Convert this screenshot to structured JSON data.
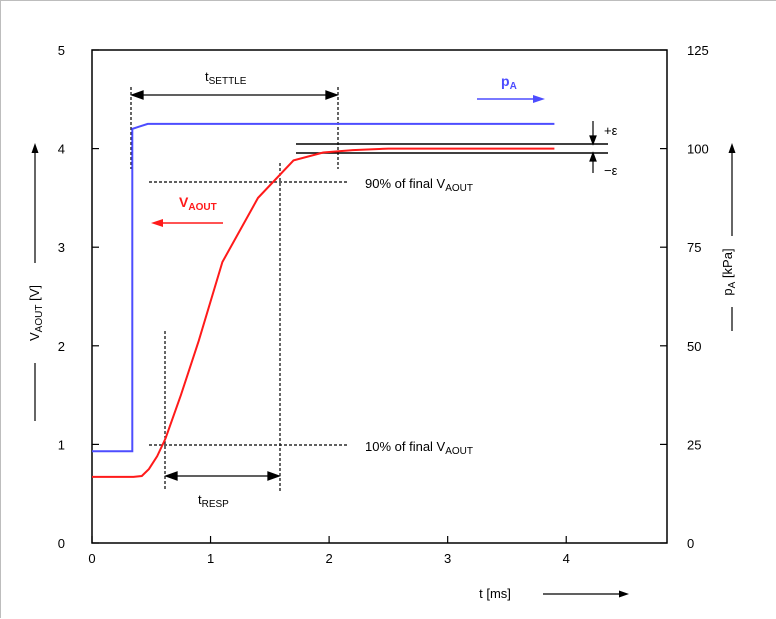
{
  "chart_data": {
    "type": "line",
    "title": "",
    "xlabel": "t [ms]",
    "ylabel_left": {
      "main": "V",
      "sub": "AOUT",
      "unit": " [V]"
    },
    "ylabel_right": {
      "main": "p",
      "sub": "A",
      "unit": " [kPa]"
    },
    "xlim": [
      0,
      4.85
    ],
    "ylim_left": [
      0,
      5
    ],
    "ylim_right": [
      0,
      125
    ],
    "x_ticks": [
      0,
      1,
      2,
      3,
      4
    ],
    "y_ticks_left": [
      0,
      1,
      2,
      3,
      4,
      5
    ],
    "y_ticks_right": [
      0,
      25,
      50,
      75,
      100,
      125
    ],
    "grid": false,
    "colors": {
      "v_aout": "#ff1a1a",
      "p_a": "#4d4dff",
      "ink": "#000000"
    },
    "series": [
      {
        "axis": "left",
        "color": "#ff1a1a",
        "x": [
          0,
          0.35,
          0.42,
          0.48,
          0.55,
          0.62,
          0.75,
          0.9,
          1.1,
          1.4,
          1.7,
          1.95,
          2.2,
          2.5,
          3.0,
          3.9
        ],
        "y": [
          0.67,
          0.67,
          0.68,
          0.75,
          0.88,
          1.06,
          1.5,
          2.05,
          2.85,
          3.5,
          3.88,
          3.96,
          3.985,
          4.0,
          4.0,
          4.0
        ]
      },
      {
        "axis": "left",
        "color": "#4d4dff",
        "x": [
          0,
          0.34,
          0.34,
          0.39,
          0.47,
          0.6,
          3.9
        ],
        "y": [
          0.93,
          0.93,
          4.2,
          4.22,
          4.25,
          4.25,
          4.25
        ]
      }
    ],
    "annotations": {
      "t_settle": {
        "main": "t",
        "sub": "SETTLE",
        "x_start": 0.33,
        "x_end": 2.0
      },
      "t_resp": {
        "main": "t",
        "sub": "RESP",
        "x_start": 0.6,
        "x_end": 1.52
      },
      "line_90": {
        "text": "90% of final V",
        "sub": "AOUT",
        "level": 3.68
      },
      "line_10": {
        "text": "10% of final V",
        "sub": "AOUT",
        "level": 1.0
      },
      "plus_eps": "+ε",
      "minus_eps": "−ε",
      "label_v": {
        "main": "V",
        "sub": "AOUT"
      },
      "label_p": {
        "main": "p",
        "sub": "A"
      }
    }
  }
}
